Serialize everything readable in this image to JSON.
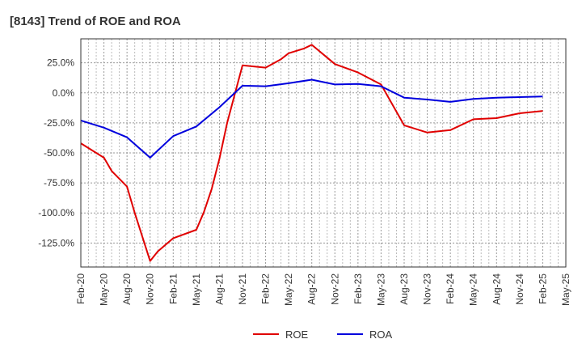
{
  "chart_data": {
    "type": "line",
    "title": "[8143]  Trend of ROE and ROA",
    "xlabel": "",
    "ylabel": "",
    "x_ticks": [
      "Feb-20",
      "May-20",
      "Aug-20",
      "Nov-20",
      "Feb-21",
      "May-21",
      "Aug-21",
      "Nov-21",
      "Feb-22",
      "May-22",
      "Aug-22",
      "Nov-22",
      "Feb-23",
      "May-23",
      "Aug-23",
      "Nov-23",
      "Feb-24",
      "May-24",
      "Aug-24",
      "Nov-24",
      "Feb-25",
      "May-25"
    ],
    "y_ticks": [
      "25.0%",
      "0.0%",
      "-25.0%",
      "-50.0%",
      "-75.0%",
      "-100.0%",
      "-125.0%"
    ],
    "y_tick_values": [
      25,
      0,
      -25,
      -50,
      -75,
      -100,
      -125
    ],
    "ylim": [
      -145,
      45
    ],
    "grid": true,
    "legend_position": "bottom-center",
    "series": [
      {
        "name": "ROE",
        "color": "#e00000",
        "points": [
          [
            "Feb-20",
            -42
          ],
          [
            "May-20",
            -54
          ],
          [
            "Jun-20",
            -65
          ],
          [
            "Aug-20",
            -78
          ],
          [
            "Sep-20",
            -100
          ],
          [
            "Nov-20",
            -140
          ],
          [
            "Dec-20",
            -132
          ],
          [
            "Feb-21",
            -121
          ],
          [
            "May-21",
            -114
          ],
          [
            "Jun-21",
            -99
          ],
          [
            "Jul-21",
            -80
          ],
          [
            "Aug-21",
            -55
          ],
          [
            "Sep-21",
            -25
          ],
          [
            "Nov-21",
            23
          ],
          [
            "Feb-22",
            21
          ],
          [
            "Apr-22",
            28
          ],
          [
            "May-22",
            33
          ],
          [
            "Jul-22",
            37
          ],
          [
            "Aug-22",
            40
          ],
          [
            "Nov-22",
            24
          ],
          [
            "Feb-23",
            17
          ],
          [
            "May-23",
            7
          ],
          [
            "Aug-23",
            -27
          ],
          [
            "Nov-23",
            -33
          ],
          [
            "Feb-24",
            -31
          ],
          [
            "May-24",
            -22
          ],
          [
            "Aug-24",
            -21
          ],
          [
            "Nov-24",
            -17
          ],
          [
            "Feb-25",
            -15
          ]
        ]
      },
      {
        "name": "ROA",
        "color": "#0000dd",
        "points": [
          [
            "Feb-20",
            -23
          ],
          [
            "May-20",
            -29
          ],
          [
            "Aug-20",
            -37
          ],
          [
            "Nov-20",
            -54
          ],
          [
            "Feb-21",
            -36
          ],
          [
            "May-21",
            -28
          ],
          [
            "Aug-21",
            -12
          ],
          [
            "Nov-21",
            6
          ],
          [
            "Feb-22",
            5.5
          ],
          [
            "May-22",
            8
          ],
          [
            "Aug-22",
            11
          ],
          [
            "Nov-22",
            7
          ],
          [
            "Feb-23",
            7.5
          ],
          [
            "May-23",
            5.5
          ],
          [
            "Aug-23",
            -4
          ],
          [
            "Nov-23",
            -5.5
          ],
          [
            "Feb-24",
            -7.5
          ],
          [
            "May-24",
            -5
          ],
          [
            "Aug-24",
            -4
          ],
          [
            "Nov-24",
            -3.5
          ],
          [
            "Feb-25",
            -3
          ]
        ]
      }
    ]
  }
}
